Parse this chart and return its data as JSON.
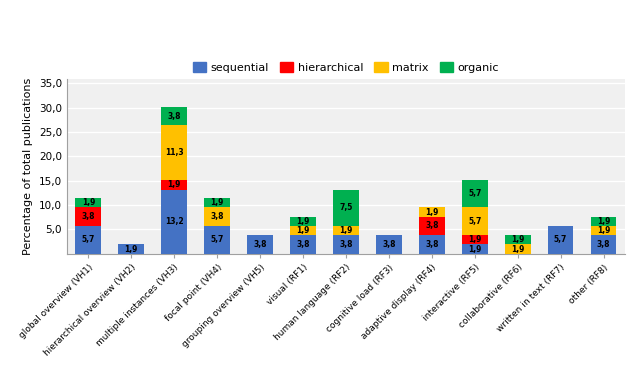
{
  "categories": [
    "global overview (VH1)",
    "hierarchical overview (VH2)",
    "multiple instances (VH3)",
    "focal point (VH4)",
    "grouping overview (VH5)",
    "visual (RF1)",
    "human language (RF2)",
    "cognitive load (RF3)",
    "adaptive display (RF4)",
    "interactive (RF5)",
    "collaborative (RF6)",
    "written in text (RF7)",
    "other (RF8)"
  ],
  "sequential": [
    5.7,
    1.9,
    13.2,
    5.7,
    3.8,
    3.8,
    3.8,
    3.8,
    3.8,
    1.9,
    0.0,
    5.7,
    3.8
  ],
  "hierarchical": [
    3.8,
    0.0,
    1.9,
    0.0,
    0.0,
    0.0,
    0.0,
    0.0,
    3.8,
    1.9,
    0.0,
    0.0,
    0.0
  ],
  "matrix": [
    0.0,
    0.0,
    11.3,
    3.8,
    0.0,
    1.9,
    1.9,
    0.0,
    1.9,
    5.7,
    1.9,
    0.0,
    1.9
  ],
  "organic": [
    1.9,
    0.0,
    3.8,
    1.9,
    0.0,
    1.9,
    7.5,
    0.0,
    0.0,
    5.7,
    1.9,
    0.0,
    1.9
  ],
  "colors": {
    "sequential": "#4472c4",
    "hierarchical": "#ff0000",
    "matrix": "#ffc000",
    "organic": "#00b050"
  },
  "ylabel": "Percentage of total publications",
  "ylim": [
    0,
    36
  ],
  "yticks": [
    5,
    10,
    15,
    20,
    25,
    30,
    35
  ],
  "ytick_labels": [
    "5,0",
    "10,0",
    "15,0",
    "20,0",
    "25,0",
    "30,0",
    "35,0"
  ],
  "background_color": "#ffffff",
  "plot_bg_color": "#f0f0f0",
  "grid_color": "#ffffff"
}
